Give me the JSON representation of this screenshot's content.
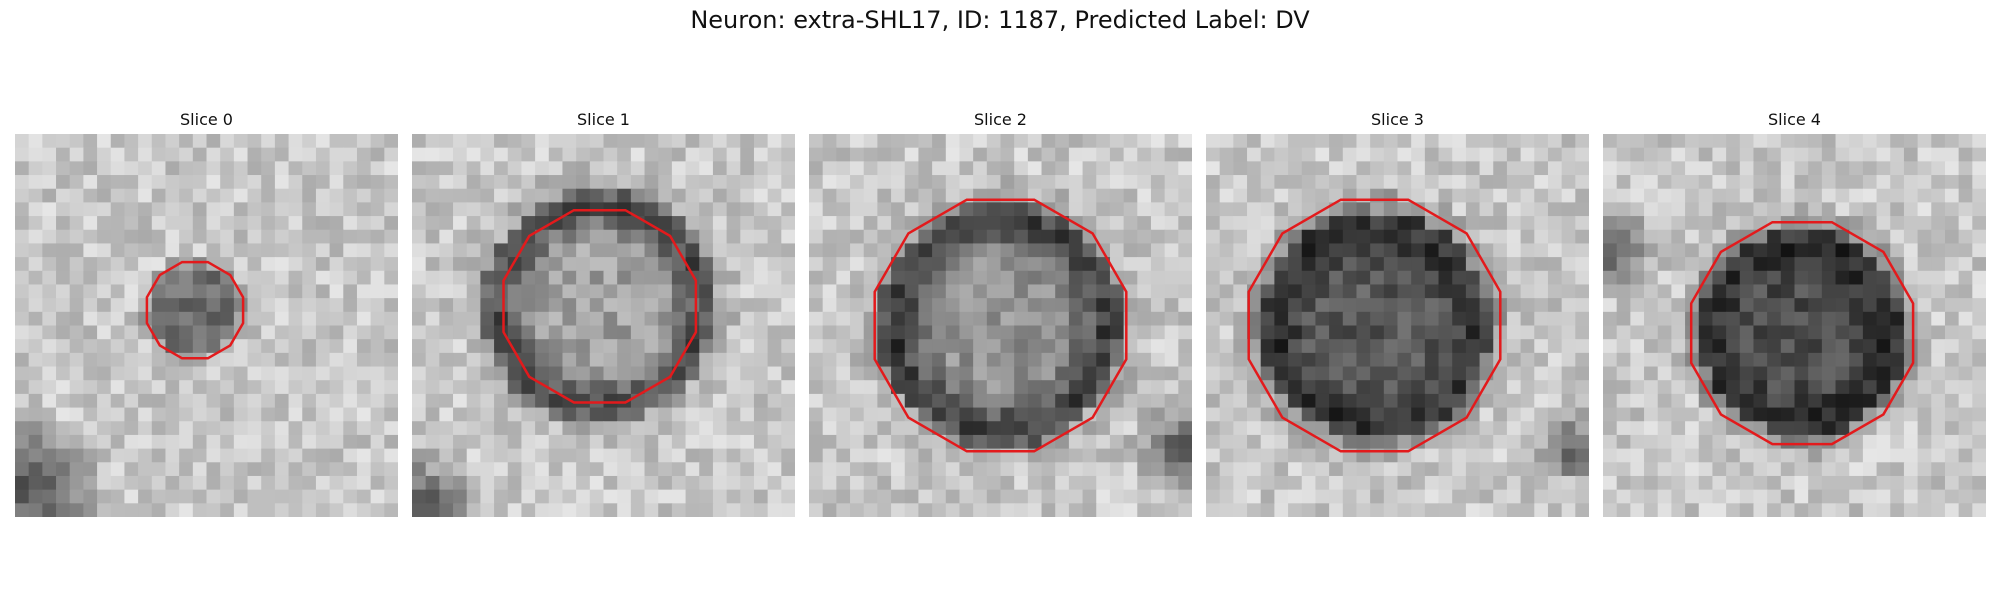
{
  "figure": {
    "title": "Neuron: extra-SHL17, ID: 1187, Predicted Label: DV"
  },
  "colors": {
    "outline": "#e31a1c",
    "background": "#ffffff"
  },
  "panels": [
    {
      "title": "Slice 0"
    },
    {
      "title": "Slice 1"
    },
    {
      "title": "Slice 2"
    },
    {
      "title": "Slice 3"
    },
    {
      "title": "Slice 4"
    }
  ]
}
